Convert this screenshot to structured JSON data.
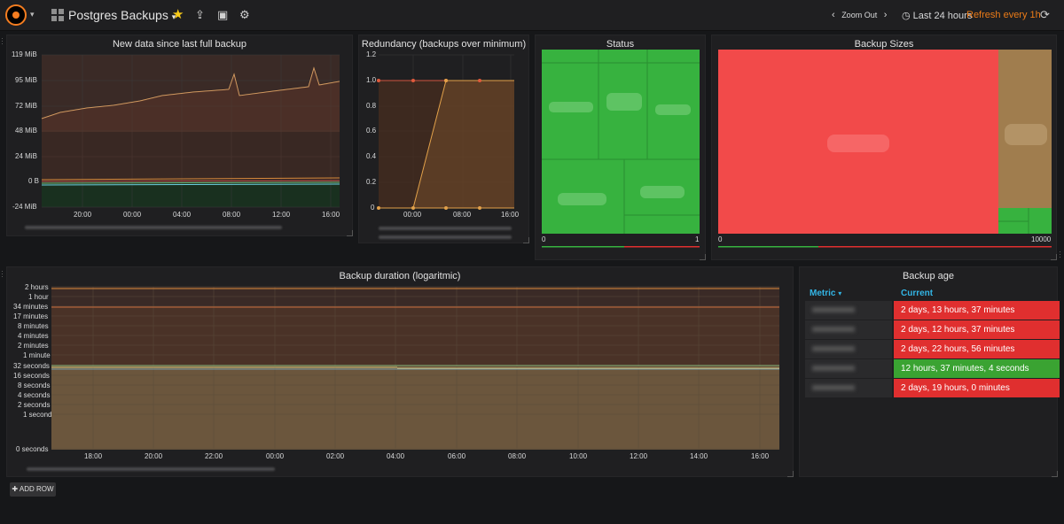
{
  "nav": {
    "dashboard_title": "Postgres Backups",
    "zoom_out": "Zoom Out",
    "time_range": "Last 24 hours",
    "refresh": "Refresh every 1h"
  },
  "panels": {
    "new_data": {
      "title": "New data since last full backup",
      "y_ticks": [
        "119 MiB",
        "95 MiB",
        "72 MiB",
        "48 MiB",
        "24 MiB",
        "0 B",
        "-24 MiB"
      ],
      "x_ticks": [
        "20:00",
        "00:00",
        "04:00",
        "08:00",
        "12:00",
        "16:00"
      ]
    },
    "redundancy": {
      "title": "Redundancy (backups over minimum)",
      "y_ticks": [
        "1.2",
        "1.0",
        "0.8",
        "0.6",
        "0.4",
        "0.2",
        "0"
      ],
      "x_ticks": [
        "00:00",
        "08:00",
        "16:00"
      ]
    },
    "status": {
      "title": "Status",
      "scale_min": "0",
      "scale_max": "1"
    },
    "backup_sizes": {
      "title": "Backup Sizes",
      "scale_min": "0",
      "scale_max": "10000"
    },
    "duration": {
      "title": "Backup duration (logaritmic)",
      "y_ticks": [
        "2 hours",
        "1 hour",
        "34 minutes",
        "17 minutes",
        "8 minutes",
        "4 minutes",
        "2 minutes",
        "1 minute",
        "32 seconds",
        "16 seconds",
        "8 seconds",
        "4 seconds",
        "2 seconds",
        "1 second",
        "0 seconds"
      ],
      "x_ticks": [
        "18:00",
        "20:00",
        "22:00",
        "00:00",
        "02:00",
        "04:00",
        "06:00",
        "08:00",
        "10:00",
        "12:00",
        "14:00",
        "16:00"
      ]
    },
    "backup_age": {
      "title": "Backup age",
      "col_metric": "Metric",
      "col_current": "Current",
      "rows": [
        {
          "value": "2 days, 13 hours, 37 minutes",
          "status": "red"
        },
        {
          "value": "2 days, 12 hours, 37 minutes",
          "status": "red"
        },
        {
          "value": "2 days, 22 hours, 56 minutes",
          "status": "red"
        },
        {
          "value": "12 hours, 37 minutes, 4 seconds",
          "status": "green"
        },
        {
          "value": "2 days, 19 hours, 0 minutes",
          "status": "red"
        }
      ]
    }
  },
  "add_row": "ADD ROW",
  "colors": {
    "accent_orange": "#eb7b18",
    "red": "#e02f2f",
    "green": "#3aa332",
    "blue": "#33b5e5"
  }
}
